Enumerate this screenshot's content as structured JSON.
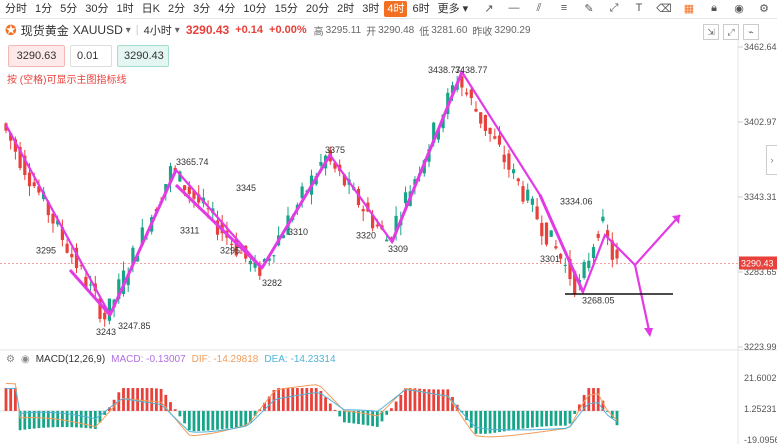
{
  "toolbar": {
    "timeframes": [
      "分时",
      "1分",
      "5分",
      "30分",
      "1时",
      "日K",
      "2分",
      "3分",
      "4分",
      "10分",
      "15分",
      "20分",
      "2时",
      "3时",
      "4时",
      "6时",
      "更多"
    ],
    "active_index": 14
  },
  "header": {
    "symbol_name": "现货黄金",
    "code": "XAUUSD",
    "period": "4小时",
    "price": "3290.43",
    "change": "+0.14",
    "change_pct": "+0.00%",
    "high_label": "高",
    "high": "3295.11",
    "open_label": "开",
    "open": "3290.48",
    "low_label": "低",
    "low": "3281.60",
    "prev_label": "昨收",
    "prev": "3290.29"
  },
  "trade": {
    "sell": "3290.63",
    "qty": "0.01",
    "buy": "3290.43"
  },
  "hint": "按 (空格)可显示主图指标线",
  "price_axis": {
    "ticks": [
      {
        "label": "3462.64",
        "value": 3462.64
      },
      {
        "label": "3402.97",
        "value": 3402.97
      },
      {
        "label": "3343.31",
        "value": 3343.31
      },
      {
        "label": "3283.65",
        "value": 3283.65
      },
      {
        "label": "3223.99",
        "value": 3223.99
      }
    ],
    "current_label": "3290.43",
    "current_value": 3290.43
  },
  "macd_axis": {
    "ticks": [
      {
        "label": "21.60029",
        "value": 21.60029
      },
      {
        "label": "1.25231",
        "value": 1.25231
      },
      {
        "label": "-19.09567",
        "value": -19.09567
      }
    ]
  },
  "macd_legend": {
    "name": "MACD(12,26,9)",
    "macd": "MACD: -0.13007",
    "dif": "DIF: -14.29818",
    "dea": "DEA: -14.23314"
  },
  "annotations": [
    {
      "text": "3295",
      "price": 3295
    },
    {
      "text": "3243",
      "price": 3243
    },
    {
      "text": "3247.85",
      "price": 3247.85
    },
    {
      "text": "3365.74",
      "price": 3365.74
    },
    {
      "text": "3311",
      "price": 3311
    },
    {
      "text": "3345",
      "price": 3345
    },
    {
      "text": "3295",
      "price": 3295
    },
    {
      "text": "3282",
      "price": 3282
    },
    {
      "text": "3310",
      "price": 3310
    },
    {
      "text": "3375",
      "price": 3375
    },
    {
      "text": "3320",
      "price": 3320
    },
    {
      "text": "3309",
      "price": 3309
    },
    {
      "text": "3438.77",
      "price": 3438.77
    },
    {
      "text": "3438.77",
      "price": 3438.77
    },
    {
      "text": "3334.06",
      "price": 3334.06
    },
    {
      "text": "3301",
      "price": 3301
    },
    {
      "text": "3268.05",
      "price": 3268.05
    }
  ],
  "colors": {
    "up": "#17a589",
    "down": "#e8403a",
    "accent": "#f36f21",
    "wave": "#e23be5",
    "dif": "#f39c5a",
    "dea": "#4fb3d9"
  },
  "icons": [
    "line-tool-icon",
    "horizontal-line-icon",
    "channel-icon",
    "fib-icon",
    "brush-icon",
    "measure-icon",
    "text-icon",
    "eraser-icon",
    "ruler-icon",
    "lock-icon",
    "eye-icon",
    "settings-icon"
  ]
}
